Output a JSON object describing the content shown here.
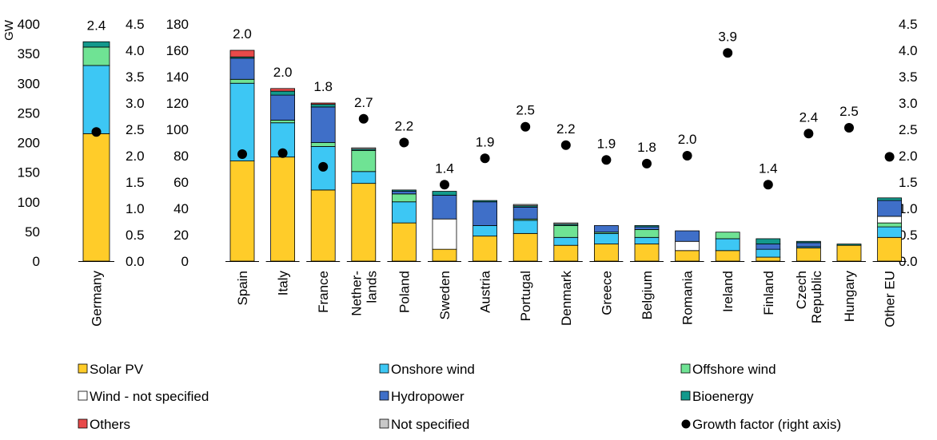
{
  "chart_data": [
    {
      "type": "bar",
      "stacked": true,
      "ylabel": "GW",
      "ylim": [
        0,
        400
      ],
      "yticks": [
        "0",
        "50",
        "100",
        "150",
        "200",
        "250",
        "300",
        "350",
        "400"
      ],
      "y2lim": [
        0,
        4.5
      ],
      "y2ticks": [
        "0.0",
        "0.5",
        "1.0",
        "1.5",
        "2.0",
        "2.5",
        "3.0",
        "3.5",
        "4.0",
        "4.5"
      ],
      "categories": [
        "Germany"
      ],
      "series": [
        {
          "name": "Solar PV",
          "values": [
            215
          ]
        },
        {
          "name": "Onshore wind",
          "values": [
            115
          ]
        },
        {
          "name": "Offshore wind",
          "values": [
            31
          ]
        },
        {
          "name": "Wind - not specified",
          "values": [
            0
          ]
        },
        {
          "name": "Hydropower",
          "values": [
            0
          ]
        },
        {
          "name": "Bioenergy",
          "values": [
            9
          ]
        },
        {
          "name": "Others",
          "values": [
            0
          ]
        },
        {
          "name": "Not specified",
          "values": [
            0
          ]
        }
      ],
      "growth_factor": [
        2.45
      ],
      "growth_labels": [
        "2.4"
      ]
    },
    {
      "type": "bar",
      "stacked": true,
      "ylim": [
        0,
        180
      ],
      "yticks": [
        "0",
        "20",
        "40",
        "60",
        "80",
        "100",
        "120",
        "140",
        "160",
        "180"
      ],
      "y2lim": [
        0,
        4.5
      ],
      "y2ticks": [
        "0.0",
        "0.5",
        "1.0",
        "1.5",
        "2.0",
        "2.5",
        "3.0",
        "3.5",
        "4.0",
        "4.5"
      ],
      "categories": [
        "Spain",
        "Italy",
        "France",
        "Nether-|lands",
        "Poland",
        "Sweden",
        "Austria",
        "Portugal",
        "Denmark",
        "Greece",
        "Belgium",
        "Romania",
        "Ireland",
        "Finland",
        "Czech|Republic",
        "Hungary",
        "Other EU"
      ],
      "series": [
        {
          "name": "Solar PV",
          "values": [
            76,
            79,
            54,
            59,
            29,
            9,
            19,
            21,
            12,
            13,
            13,
            8,
            8,
            3,
            10,
            12,
            18
          ]
        },
        {
          "name": "Onshore wind",
          "values": [
            59,
            26,
            33,
            9,
            16,
            0,
            8,
            10,
            6,
            8,
            5,
            0,
            9,
            6,
            1,
            0,
            8
          ]
        },
        {
          "name": "Offshore wind",
          "values": [
            3,
            2,
            3,
            16,
            6,
            0,
            0,
            1,
            9,
            1,
            6,
            0,
            5,
            0,
            0,
            0,
            3
          ]
        },
        {
          "name": "Wind - not specified",
          "values": [
            0,
            0,
            0,
            0,
            0,
            23,
            0,
            0,
            0,
            0,
            0,
            7,
            0,
            0,
            0,
            0,
            5
          ]
        },
        {
          "name": "Hydropower",
          "values": [
            16,
            19,
            27,
            0,
            2,
            18,
            18,
            9,
            0,
            5,
            2,
            8,
            0,
            4,
            3,
            0,
            12
          ]
        },
        {
          "name": "Bioenergy",
          "values": [
            1,
            3,
            2,
            1,
            1,
            3,
            1,
            1,
            1,
            0,
            1,
            0,
            0,
            4,
            1,
            1,
            2
          ]
        },
        {
          "name": "Others",
          "values": [
            5,
            2,
            1,
            0,
            0,
            0,
            0,
            0,
            0,
            0,
            0,
            0,
            0,
            0,
            0,
            0,
            0
          ]
        },
        {
          "name": "Not specified",
          "values": [
            0,
            0,
            0,
            1,
            0,
            0,
            0,
            1,
            1,
            0,
            0,
            0,
            0,
            0,
            0,
            0,
            0
          ]
        }
      ],
      "growth_factor": [
        2.03,
        2.05,
        1.79,
        2.7,
        2.25,
        1.45,
        1.95,
        2.55,
        2.2,
        1.92,
        1.85,
        2.0,
        3.95,
        1.45,
        2.42,
        2.53,
        1.98
      ],
      "growth_labels": [
        "2.0",
        "2.0",
        "1.8",
        "2.7",
        "2.2",
        "1.4",
        "1.9",
        "2.5",
        "2.2",
        "1.9",
        "1.8",
        "2.0",
        "3.9",
        "1.4",
        "2.4",
        "2.5",
        ""
      ]
    }
  ],
  "colors": {
    "Solar PV": "#ffcc29",
    "Onshore wind": "#3dc7f4",
    "Offshore wind": "#6fe394",
    "Wind - not specified": "#ffffff",
    "Hydropower": "#3f6fc8",
    "Bioenergy": "#13998c",
    "Others": "#e84a4a",
    "Not specified": "#c8c8c8",
    "Growth factor (right axis)": "#000000"
  },
  "legend": [
    {
      "label": "Solar PV",
      "marker": "square"
    },
    {
      "label": "Onshore wind",
      "marker": "square"
    },
    {
      "label": "Offshore wind",
      "marker": "square"
    },
    {
      "label": "Wind - not specified",
      "marker": "square"
    },
    {
      "label": "Hydropower",
      "marker": "square"
    },
    {
      "label": "Bioenergy",
      "marker": "square"
    },
    {
      "label": "Others",
      "marker": "square"
    },
    {
      "label": "Not specified",
      "marker": "square"
    },
    {
      "label": "Growth factor (right axis)",
      "marker": "dot"
    }
  ]
}
